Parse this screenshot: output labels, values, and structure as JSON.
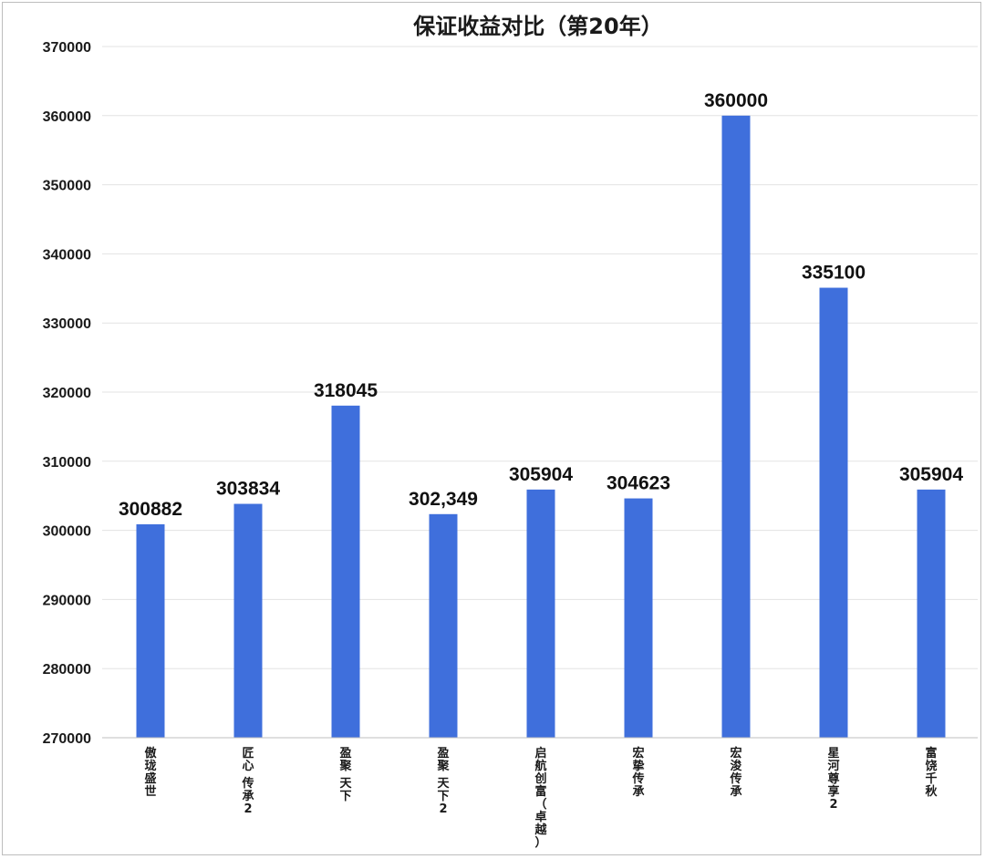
{
  "chart_data": {
    "type": "bar",
    "title": "保证收益对比（第20年）",
    "categories": [
      "傲珑盛世",
      "匠心 传承2",
      "盈聚 天下",
      "盈聚 天下2",
      "启航创富（卓越）",
      "宏挚传承",
      "宏浚传承",
      "星河尊享2",
      "富饶千秋"
    ],
    "values": [
      300882,
      303834,
      318045,
      302349,
      305904,
      304623,
      360000,
      335100,
      305904
    ],
    "data_labels": [
      "300882",
      "303834",
      "318045",
      "302,349",
      "305904",
      "304623",
      "360000",
      "335100",
      "305904"
    ],
    "ylim": [
      270000,
      370000
    ],
    "yticks": [
      "270000",
      "280000",
      "290000",
      "300000",
      "310000",
      "320000",
      "330000",
      "340000",
      "350000",
      "360000",
      "370000"
    ],
    "xlabel": "",
    "ylabel": "",
    "grid": true,
    "legend": "none",
    "colors": {
      "bar": "#3f6fdc",
      "text": "#1a1a1a"
    }
  }
}
